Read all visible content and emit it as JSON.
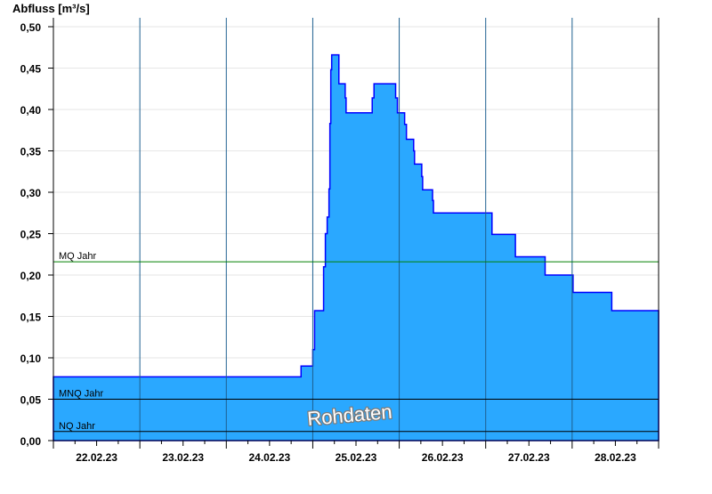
{
  "chart_data": {
    "type": "area",
    "step": true,
    "ylabel": "Abfluss [m³/s]",
    "ylim": [
      0,
      0.5
    ],
    "yticks": [
      "0,00",
      "0,05",
      "0,10",
      "0,15",
      "0,20",
      "0,25",
      "0,30",
      "0,35",
      "0,40",
      "0,45",
      "0,50"
    ],
    "xlim": [
      "22.02.23 00:00",
      "01.03.23 00:00"
    ],
    "xticks": [
      "22.02.23",
      "23.02.23",
      "24.02.23",
      "25.02.23",
      "26.02.23",
      "27.02.23",
      "28.02.23"
    ],
    "grid": "horizontal",
    "fill_color": "#2aa8ff",
    "line_color": "#0000ff",
    "series": [
      {
        "points": [
          [
            "22.02.23 00:00",
            0.077
          ],
          [
            "24.02.23 20:45",
            0.09
          ],
          [
            "25.02.23 00:00",
            0.11
          ],
          [
            "25.02.23 00:30",
            0.157
          ],
          [
            "25.02.23 03:00",
            0.21
          ],
          [
            "25.02.23 03:30",
            0.25
          ],
          [
            "25.02.23 04:00",
            0.27
          ],
          [
            "25.02.23 04:30",
            0.304
          ],
          [
            "25.02.23 04:45",
            0.383
          ],
          [
            "25.02.23 05:00",
            0.448
          ],
          [
            "25.02.23 05:15",
            0.466
          ],
          [
            "25.02.23 07:15",
            0.431
          ],
          [
            "25.02.23 09:00",
            0.414
          ],
          [
            "25.02.23 09:15",
            0.396
          ],
          [
            "25.02.23 16:30",
            0.414
          ],
          [
            "25.02.23 17:00",
            0.431
          ],
          [
            "25.02.23 23:00",
            0.414
          ],
          [
            "25.02.23 23:30",
            0.396
          ],
          [
            "26.02.23 01:30",
            0.382
          ],
          [
            "26.02.23 02:00",
            0.364
          ],
          [
            "26.02.23 04:00",
            0.35
          ],
          [
            "26.02.23 04:15",
            0.334
          ],
          [
            "26.02.23 06:15",
            0.319
          ],
          [
            "26.02.23 06:30",
            0.303
          ],
          [
            "26.02.23 09:15",
            0.29
          ],
          [
            "26.02.23 09:30",
            0.275
          ],
          [
            "27.02.23 01:45",
            0.249
          ],
          [
            "27.02.23 08:15",
            0.222
          ],
          [
            "27.02.23 16:30",
            0.2
          ],
          [
            "28.02.23 00:15",
            0.179
          ],
          [
            "28.02.23 11:00",
            0.157
          ],
          [
            "01.03.23 00:00",
            0.157
          ]
        ]
      }
    ],
    "reference_lines": [
      {
        "label": "MQ Jahr",
        "value": 0.216,
        "color": "#008000"
      },
      {
        "label": "MNQ Jahr",
        "value": 0.05,
        "color": "#000000"
      },
      {
        "label": "NQ Jahr",
        "value": 0.011,
        "color": "#000000"
      }
    ],
    "watermark": "Rohdaten"
  }
}
